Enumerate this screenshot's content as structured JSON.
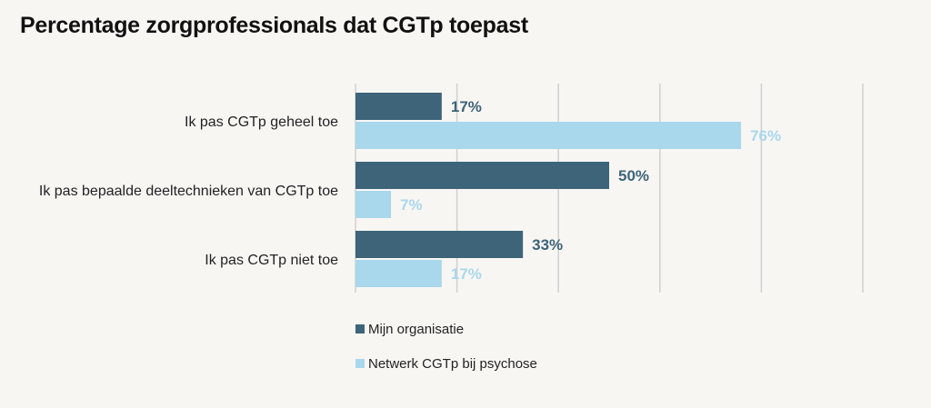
{
  "chart_data": {
    "type": "bar",
    "orientation": "horizontal",
    "title": "Percentage zorgprofessionals dat CGTp toepast",
    "categories": [
      "Ik pas CGTp geheel toe",
      "Ik pas bepaalde deeltechnieken van CGTp toe",
      "Ik pas CGTp niet toe"
    ],
    "series": [
      {
        "name": "Mijn organisatie",
        "values": [
          17,
          50,
          33
        ],
        "labels": [
          "17%",
          "50%",
          "33%"
        ],
        "color": "#3d6478"
      },
      {
        "name": "Netwerk CGTp bij psychose",
        "values": [
          76,
          7,
          17
        ],
        "labels": [
          "76%",
          "7%",
          "17%"
        ],
        "color": "#a9d7ec"
      }
    ],
    "xlim": [
      0,
      100
    ],
    "grid": true,
    "legend_position": "bottom-center"
  }
}
